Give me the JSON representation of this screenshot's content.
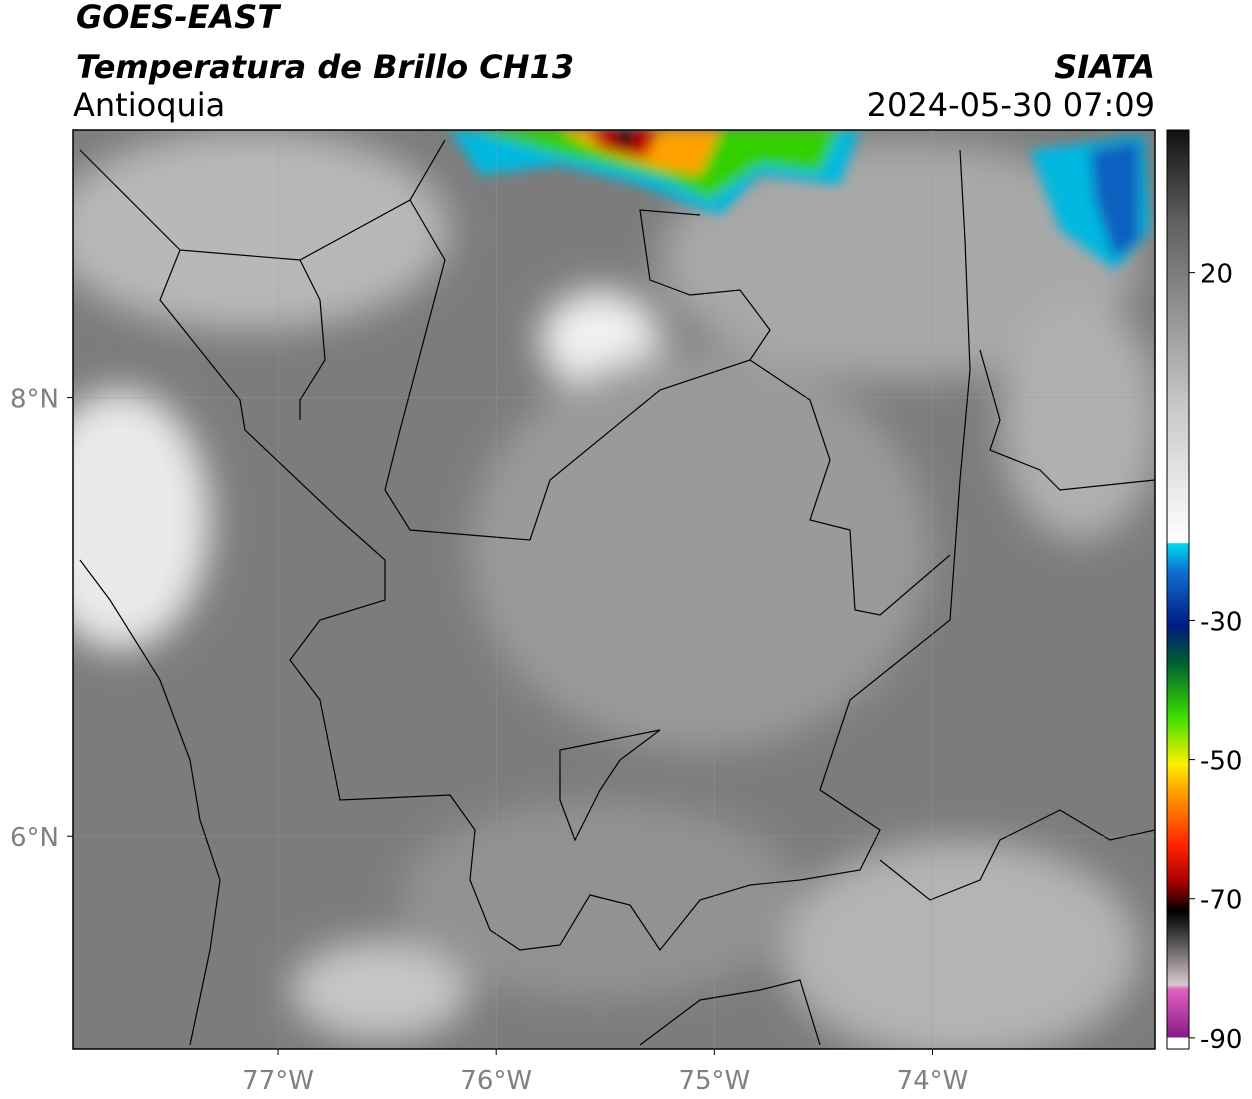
{
  "title": "GOES-EAST",
  "subtitle": "Temperatura de Brillo CH13",
  "region": "Antioquia",
  "source": "SIATA",
  "timestamp": "2024-05-30 07:09",
  "map": {
    "xlim": [
      -77.94,
      -72.98
    ],
    "ylim": [
      5.03,
      9.22
    ],
    "xticks": [
      {
        "value": -77,
        "label": "77°W"
      },
      {
        "value": -76,
        "label": "76°W"
      },
      {
        "value": -75,
        "label": "75°W"
      },
      {
        "value": -74,
        "label": "74°W"
      }
    ],
    "yticks": [
      {
        "value": 8,
        "label": "8°N"
      },
      {
        "value": 6,
        "label": "6°N"
      }
    ],
    "grid": true
  },
  "colorbar": {
    "lim": [
      -91.6,
      40.5
    ],
    "ticks": [
      20,
      -30,
      -50,
      -70,
      -90
    ]
  }
}
